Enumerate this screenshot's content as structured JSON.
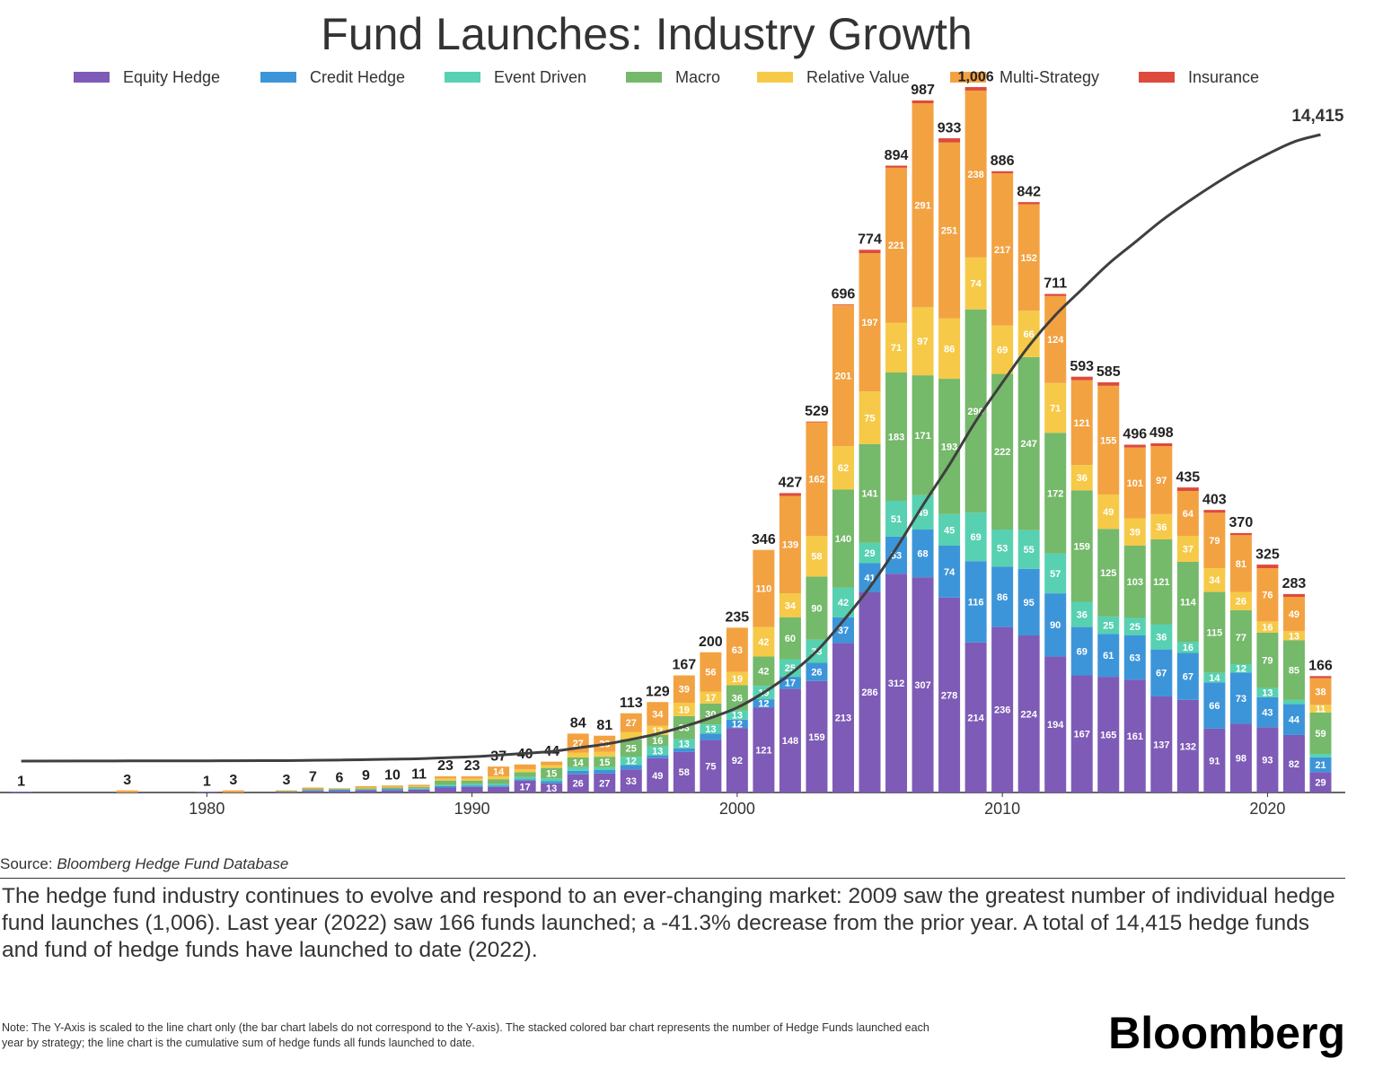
{
  "chart_data": {
    "type": "stacked-bar-line",
    "title": "Fund Launches: Industry Growth",
    "x": [
      1973,
      1977,
      1980,
      1981,
      1983,
      1984,
      1985,
      1986,
      1987,
      1988,
      1989,
      1990,
      1991,
      1992,
      1993,
      1994,
      1995,
      1996,
      1997,
      1998,
      1999,
      2000,
      2001,
      2002,
      2003,
      2004,
      2005,
      2006,
      2007,
      2008,
      2009,
      2010,
      2011,
      2012,
      2013,
      2014,
      2015,
      2016,
      2017,
      2018,
      2019,
      2020,
      2021,
      2022
    ],
    "xlim": [
      1972.2,
      2023
    ],
    "xticks": [
      1980,
      1990,
      2000,
      2010,
      2020
    ],
    "ylim": [
      0,
      1015
    ],
    "y2lim": [
      -723,
      15654
    ],
    "series": [
      {
        "name": "Equity Hedge",
        "color": "#7e5bb6",
        "values": [
          1,
          0,
          1,
          0,
          1,
          2,
          2,
          3,
          3,
          4,
          7,
          8,
          8,
          17,
          13,
          26,
          27,
          33,
          49,
          58,
          75,
          92,
          121,
          148,
          159,
          213,
          286,
          312,
          307,
          278,
          214,
          236,
          224,
          194,
          167,
          165,
          161,
          137,
          132,
          91,
          98,
          93,
          82,
          29
        ]
      },
      {
        "name": "Credit Hedge",
        "color": "#3d95d9",
        "values": [
          0,
          0,
          0,
          0,
          0,
          1,
          2,
          1,
          2,
          1,
          2,
          2,
          2,
          2,
          3,
          5,
          5,
          6,
          4,
          5,
          9,
          12,
          12,
          17,
          26,
          37,
          41,
          53,
          68,
          74,
          116,
          86,
          95,
          90,
          69,
          61,
          63,
          67,
          67,
          66,
          73,
          43,
          44,
          21
        ]
      },
      {
        "name": "Event Driven",
        "color": "#57d1b1",
        "values": [
          0,
          0,
          0,
          0,
          0,
          0,
          0,
          0,
          0,
          1,
          2,
          2,
          2,
          3,
          4,
          5,
          4,
          12,
          13,
          13,
          13,
          13,
          19,
          25,
          33,
          42,
          29,
          51,
          49,
          45,
          69,
          53,
          55,
          57,
          36,
          25,
          25,
          36,
          16,
          14,
          12,
          13,
          6,
          5
        ]
      },
      {
        "name": "Macro",
        "color": "#75b96b",
        "values": [
          0,
          0,
          0,
          0,
          1,
          2,
          1,
          2,
          2,
          2,
          6,
          5,
          7,
          7,
          15,
          14,
          15,
          25,
          16,
          33,
          30,
          36,
          42,
          60,
          90,
          140,
          141,
          183,
          171,
          193,
          290,
          222,
          247,
          172,
          159,
          125,
          103,
          121,
          114,
          115,
          77,
          79,
          85,
          59
        ]
      },
      {
        "name": "Relative Value",
        "color": "#f6ca48",
        "values": [
          0,
          0,
          0,
          0,
          0,
          0,
          0,
          1,
          1,
          1,
          3,
          3,
          4,
          4,
          4,
          7,
          7,
          10,
          13,
          19,
          17,
          19,
          42,
          34,
          58,
          62,
          75,
          71,
          97,
          86,
          74,
          69,
          66,
          71,
          36,
          49,
          39,
          36,
          37,
          34,
          26,
          16,
          13,
          11
        ]
      },
      {
        "name": "Multi-Strategy",
        "color": "#f3a242",
        "values": [
          0,
          3,
          0,
          3,
          1,
          2,
          1,
          2,
          2,
          2,
          3,
          3,
          14,
          7,
          5,
          27,
          23,
          27,
          34,
          39,
          56,
          63,
          110,
          139,
          162,
          201,
          197,
          221,
          291,
          251,
          238,
          217,
          152,
          124,
          121,
          155,
          101,
          97,
          64,
          79,
          81,
          76,
          49,
          38
        ]
      },
      {
        "name": "Insurance",
        "color": "#dd4b3c",
        "values": [
          0,
          0,
          0,
          0,
          0,
          0,
          0,
          0,
          0,
          0,
          0,
          0,
          0,
          0,
          0,
          0,
          0,
          0,
          0,
          0,
          0,
          0,
          0,
          4,
          1,
          1,
          5,
          3,
          4,
          6,
          5,
          3,
          3,
          3,
          5,
          5,
          4,
          4,
          5,
          4,
          3,
          5,
          4,
          3
        ]
      }
    ],
    "totals": {
      "values": [
        1,
        3,
        1,
        3,
        3,
        7,
        6,
        9,
        10,
        11,
        23,
        23,
        37,
        40,
        44,
        84,
        81,
        113,
        129,
        167,
        200,
        235,
        346,
        427,
        529,
        696,
        774,
        894,
        987,
        933,
        1006,
        886,
        842,
        711,
        593,
        585,
        496,
        498,
        435,
        403,
        370,
        325,
        283,
        166
      ],
      "value_labels": [
        null,
        null,
        null,
        null,
        null,
        null,
        null,
        null,
        null,
        null,
        null,
        null,
        null,
        null,
        null,
        null,
        null,
        null,
        null,
        null,
        null,
        null,
        null,
        null,
        null,
        null,
        null,
        null,
        null,
        null,
        "1,006",
        null,
        null,
        null,
        null,
        null,
        null,
        null,
        null,
        null,
        null,
        null,
        null,
        null
      ]
    },
    "line": {
      "axis": "y2",
      "color": "#3f3f3f",
      "values": [
        1,
        4,
        5,
        8,
        11,
        18,
        24,
        33,
        43,
        54,
        77,
        100,
        137,
        177,
        221,
        305,
        386,
        499,
        628,
        795,
        995,
        1230,
        1576,
        2003,
        2532,
        3228,
        4002,
        4896,
        5883,
        6816,
        7822,
        8708,
        9550,
        10261,
        10854,
        11439,
        11935,
        12433,
        12868,
        13271,
        13641,
        13966,
        14249,
        14415
      ],
      "value_labels": [
        null,
        null,
        null,
        null,
        null,
        null,
        null,
        null,
        null,
        null,
        null,
        null,
        null,
        null,
        null,
        null,
        null,
        null,
        null,
        null,
        null,
        null,
        null,
        null,
        null,
        null,
        null,
        null,
        null,
        null,
        null,
        null,
        null,
        null,
        null,
        null,
        null,
        null,
        null,
        null,
        null,
        null,
        null,
        "14,415"
      ]
    },
    "source_label": "Source:",
    "source": "Bloomberg Hedge Fund Database",
    "description": "The hedge fund industry continues to evolve and respond to an ever-changing market: 2009 saw the greatest number of individual hedge fund launches (1,006). Last year (2022) saw 166 funds launched; a -41.3% decrease from the prior year. A total of 14,415 hedge funds and fund of hedge funds have launched to date (2022).",
    "note": "Note: The Y-Axis is scaled to the line chart only (the bar chart labels do not correspond to the Y-axis). The stacked colored bar chart represents the number of Hedge Funds launched each year by strategy; the line chart is the cumulative sum of hedge funds all funds launched to date.",
    "brand": "Bloomberg"
  }
}
